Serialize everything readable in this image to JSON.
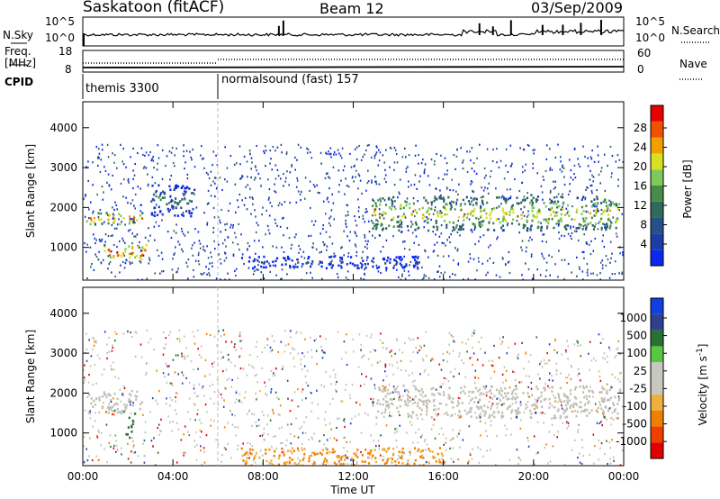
{
  "header": {
    "station": "Saskatoon (fitACF)",
    "beam": "Beam 12",
    "date": "03/Sep/2009"
  },
  "top_panels": {
    "nsky_label": "N.Sky",
    "nsky_ticks": [
      "10^5",
      "10^0"
    ],
    "nsearch_label": "N.Search",
    "nsearch_ticks": [
      "10^5",
      "10^0"
    ],
    "freq_label": "Freq.",
    "freq_unit": "[MHz]",
    "freq_ticks": [
      "18",
      "8"
    ],
    "nave_label": "Nave",
    "nave_ticks": [
      "60",
      "0"
    ],
    "cpid_label": "CPID",
    "cpid_segments": [
      {
        "label": "themis 3300",
        "start_hour": 0
      },
      {
        "label": "normalsound (fast) 157",
        "start_hour": 6
      }
    ]
  },
  "chart_data": [
    {
      "type": "heatmap",
      "title": "",
      "xlabel": "Time UT",
      "ylabel": "Slant Range [km]",
      "xlim": [
        0,
        24
      ],
      "ylim": [
        180,
        4650
      ],
      "x_ticks": [
        "00:00",
        "04:00",
        "08:00",
        "12:00",
        "16:00",
        "20:00",
        "00:00"
      ],
      "y_ticks": [
        1000,
        2000,
        3000,
        4000
      ],
      "colorbar": {
        "label": "Power [dB]",
        "ticks": [
          "28",
          "24",
          "20",
          "16",
          "12",
          "8",
          "4"
        ],
        "range": [
          0,
          30
        ]
      },
      "structures": [
        {
          "t0": 0.1,
          "t1": 2.7,
          "r0": 1600,
          "r1": 1900,
          "level": 24
        },
        {
          "t0": 0.9,
          "t1": 2.8,
          "r0": 700,
          "r1": 1100,
          "level": 26
        },
        {
          "t0": 3.0,
          "t1": 5.0,
          "r0": 1800,
          "r1": 2600,
          "level": 12
        },
        {
          "t0": 12.8,
          "t1": 23.8,
          "r0": 1450,
          "r1": 2300,
          "level": 20
        },
        {
          "t0": 7.0,
          "t1": 15.0,
          "r0": 500,
          "r1": 800,
          "level": 6
        }
      ]
    },
    {
      "type": "heatmap",
      "title": "",
      "xlabel": "Time UT",
      "ylabel": "Slant Range [km]",
      "xlim": [
        0,
        24
      ],
      "ylim": [
        180,
        4650
      ],
      "x_ticks": [
        "00:00",
        "04:00",
        "08:00",
        "12:00",
        "16:00",
        "20:00",
        "00:00"
      ],
      "y_ticks": [
        1000,
        2000,
        3000,
        4000
      ],
      "colorbar": {
        "label": "Velocity [m s^-1]",
        "ticks": [
          "1000",
          "500",
          "100",
          "25",
          "-25",
          "-100",
          "-500",
          "-1000"
        ]
      },
      "structures": [
        {
          "t0": 0.2,
          "t1": 2.6,
          "r0": 1500,
          "r1": 2100,
          "category": "ground-scatter"
        },
        {
          "t0": 12.8,
          "t1": 23.8,
          "r0": 1400,
          "r1": 2200,
          "category": "ground-scatter"
        },
        {
          "t0": 1.8,
          "t1": 2.2,
          "r0": 900,
          "r1": 1500,
          "velocity": 150
        },
        {
          "t0": 7.0,
          "t1": 16.0,
          "r0": 200,
          "r1": 650,
          "velocity": -100
        }
      ]
    }
  ],
  "colors": {
    "power_scale": [
      "#0a28f0",
      "#1e3ca8",
      "#27508a",
      "#2f6a5a",
      "#4a8a4a",
      "#7fc85a",
      "#d8e020",
      "#f0a000",
      "#f05000",
      "#e80000"
    ],
    "velocity_scale": [
      "#e00000",
      "#f04000",
      "#f08000",
      "#f0b040",
      "#c8c8c0",
      "#c8c8c0",
      "#58c840",
      "#2a7030",
      "#304090",
      "#1040e0"
    ],
    "ground_scatter": "#c0c0b8"
  }
}
